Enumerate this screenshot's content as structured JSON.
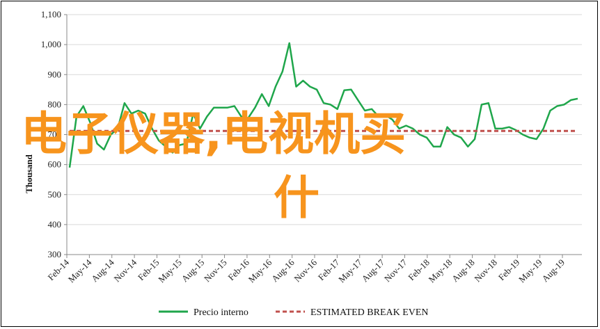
{
  "chart_data": {
    "type": "line",
    "ylabel": "Thousand",
    "ylim": [
      300,
      1100
    ],
    "yticks": [
      "300",
      "400",
      "500",
      "600",
      "700",
      "800",
      "900",
      "1,000",
      "1,100"
    ],
    "ytick_values": [
      300,
      400,
      500,
      600,
      700,
      800,
      900,
      1000,
      1100
    ],
    "xtick_labels": [
      "Feb-14",
      "May-14",
      "Aug-14",
      "Nov-14",
      "Feb-15",
      "May-15",
      "Aug-15",
      "Nov-15",
      "Feb-16",
      "May-16",
      "Aug-16",
      "Nov-16",
      "Feb-17",
      "May-17",
      "Aug-17",
      "Nov-17",
      "Feb-18",
      "May-18",
      "Aug-18",
      "Nov-18",
      "Feb-19",
      "May-19",
      "Aug-19"
    ],
    "series": [
      {
        "name": "Precio interno",
        "color": "#1fa64b",
        "style": "solid",
        "values": [
          590,
          760,
          795,
          740,
          670,
          650,
          700,
          720,
          805,
          770,
          780,
          770,
          720,
          680,
          660,
          640,
          665,
          670,
          770,
          720,
          760,
          790,
          790,
          790,
          795,
          760,
          755,
          790,
          835,
          795,
          860,
          910,
          1005,
          860,
          880,
          860,
          850,
          805,
          800,
          785,
          848,
          850,
          815,
          780,
          785,
          760,
          765,
          750,
          720,
          730,
          720,
          700,
          690,
          660,
          660,
          725,
          700,
          690,
          660,
          685,
          800,
          805,
          720,
          720,
          725,
          715,
          700,
          690,
          685,
          720,
          780,
          795,
          800,
          815,
          820
        ]
      },
      {
        "name": "ESTIMATED BREAK EVEN",
        "color": "#c0504d",
        "style": "dashed",
        "values": [
          712,
          712
        ]
      }
    ]
  },
  "overlay": {
    "line1": "电子仪器,电视机买",
    "line2": "什"
  }
}
